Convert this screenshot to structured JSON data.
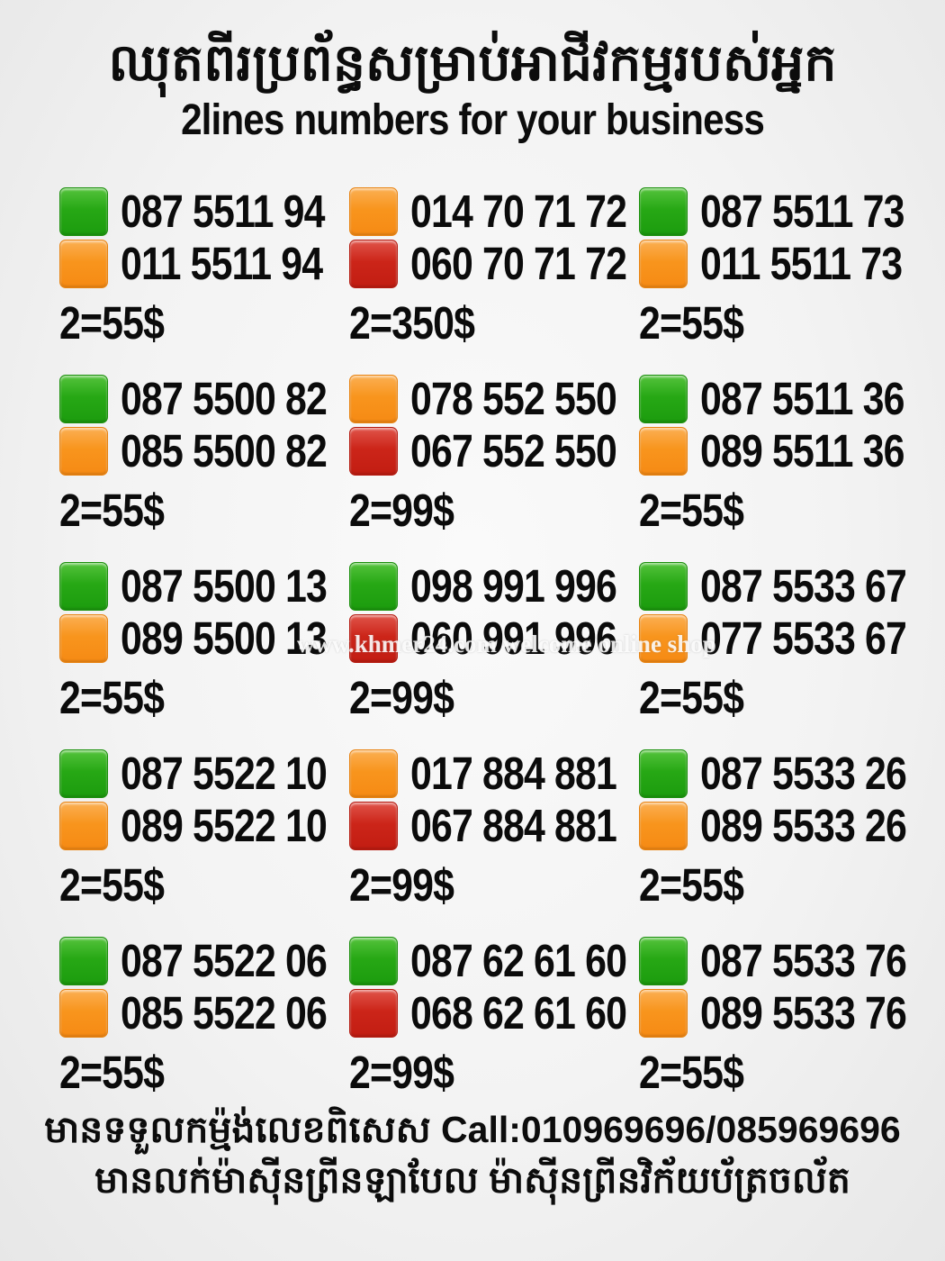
{
  "title": {
    "khmer": "ឈុតពីរប្រព័ន្ធសម្រាប់អាជីវកម្មរបស់អ្នក",
    "english": "2lines numbers for your business"
  },
  "colors": {
    "green": "#27a815",
    "orange": "#f8951d",
    "red": "#cc2519",
    "background": "#f3f3f3",
    "text": "#0c0c0c"
  },
  "cards": [
    {
      "lines": [
        {
          "color": "green",
          "number": "087 5511 94"
        },
        {
          "color": "orange",
          "number": "011 5511 94"
        }
      ],
      "price": "2=55$"
    },
    {
      "lines": [
        {
          "color": "orange",
          "number": "014 70 71 72"
        },
        {
          "color": "red",
          "number": "060 70 71 72"
        }
      ],
      "price": "2=350$"
    },
    {
      "lines": [
        {
          "color": "green",
          "number": "087 5511 73"
        },
        {
          "color": "orange",
          "number": "011 5511 73"
        }
      ],
      "price": "2=55$"
    },
    {
      "lines": [
        {
          "color": "green",
          "number": "087 5500 82"
        },
        {
          "color": "orange",
          "number": "085 5500 82"
        }
      ],
      "price": "2=55$"
    },
    {
      "lines": [
        {
          "color": "orange",
          "number": "078 552 550"
        },
        {
          "color": "red",
          "number": "067 552 550"
        }
      ],
      "price": "2=99$"
    },
    {
      "lines": [
        {
          "color": "green",
          "number": "087 5511 36"
        },
        {
          "color": "orange",
          "number": "089 5511 36"
        }
      ],
      "price": "2=55$"
    },
    {
      "lines": [
        {
          "color": "green",
          "number": "087 5500 13"
        },
        {
          "color": "orange",
          "number": "089 5500 13"
        }
      ],
      "price": "2=55$"
    },
    {
      "lines": [
        {
          "color": "green",
          "number": "098 991 996"
        },
        {
          "color": "red",
          "number": "060 991 996"
        }
      ],
      "price": "2=99$"
    },
    {
      "lines": [
        {
          "color": "green",
          "number": "087 5533 67"
        },
        {
          "color": "orange",
          "number": "077 5533 67"
        }
      ],
      "price": "2=55$"
    },
    {
      "lines": [
        {
          "color": "green",
          "number": "087 5522 10"
        },
        {
          "color": "orange",
          "number": "089 5522 10"
        }
      ],
      "price": "2=55$"
    },
    {
      "lines": [
        {
          "color": "orange",
          "number": "017 884 881"
        },
        {
          "color": "red",
          "number": "067 884 881"
        }
      ],
      "price": "2=99$"
    },
    {
      "lines": [
        {
          "color": "green",
          "number": "087 5533 26"
        },
        {
          "color": "orange",
          "number": "089 5533 26"
        }
      ],
      "price": "2=55$"
    },
    {
      "lines": [
        {
          "color": "green",
          "number": "087 5522 06"
        },
        {
          "color": "orange",
          "number": "085 5522 06"
        }
      ],
      "price": "2=55$"
    },
    {
      "lines": [
        {
          "color": "green",
          "number": "087 62 61 60"
        },
        {
          "color": "red",
          "number": "068 62 61 60"
        }
      ],
      "price": "2=99$"
    },
    {
      "lines": [
        {
          "color": "green",
          "number": "087 5533 76"
        },
        {
          "color": "orange",
          "number": "089 5533 76"
        }
      ],
      "price": "2=55$"
    }
  ],
  "watermark": "www.khmer24.com welcome online shop",
  "footer": {
    "line1": "មានទទួលកម្ម៉ង់លេខពិសេស Call:010969696/085969696",
    "line2": "មានលក់ម៉ាស៊ីនព្រីនឡាបែល ម៉ាស៊ីនព្រីនវិក័យប័ត្រចល័ត"
  }
}
